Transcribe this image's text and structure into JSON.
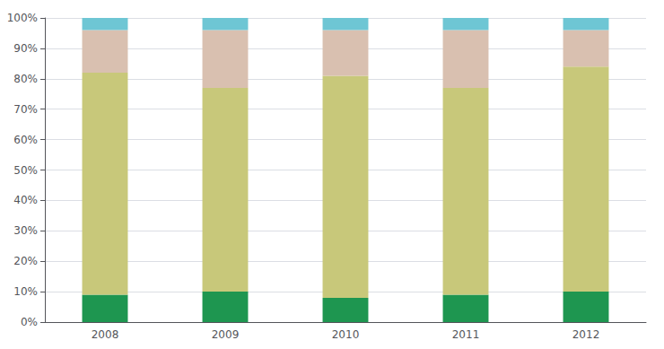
{
  "chart_data": {
    "type": "bar",
    "categories": [
      "2008",
      "2009",
      "2010",
      "2011",
      "2012"
    ],
    "series": [
      {
        "color": "#1e9650",
        "values": [
          9,
          10,
          8,
          9,
          10
        ]
      },
      {
        "color": "#c8c87a",
        "values": [
          73,
          67,
          73,
          68,
          74
        ]
      },
      {
        "color": "#d9c0b0",
        "values": [
          14,
          19,
          15,
          19,
          12
        ]
      },
      {
        "color": "#6ec6d4",
        "values": [
          4,
          4,
          4,
          4,
          4
        ]
      }
    ],
    "stacked": true,
    "ylim": [
      0,
      100
    ],
    "yticks": [
      {
        "value": 0,
        "label": "0%"
      },
      {
        "value": 10,
        "label": "10%"
      },
      {
        "value": 20,
        "label": "20%"
      },
      {
        "value": 30,
        "label": "30%"
      },
      {
        "value": 40,
        "label": "40%"
      },
      {
        "value": 50,
        "label": "50%"
      },
      {
        "value": 60,
        "label": "60%"
      },
      {
        "value": 70,
        "label": "70%"
      },
      {
        "value": 80,
        "label": "80%"
      },
      {
        "value": 90,
        "label": "90%"
      },
      {
        "value": 100,
        "label": "100%"
      }
    ],
    "grid": true
  }
}
